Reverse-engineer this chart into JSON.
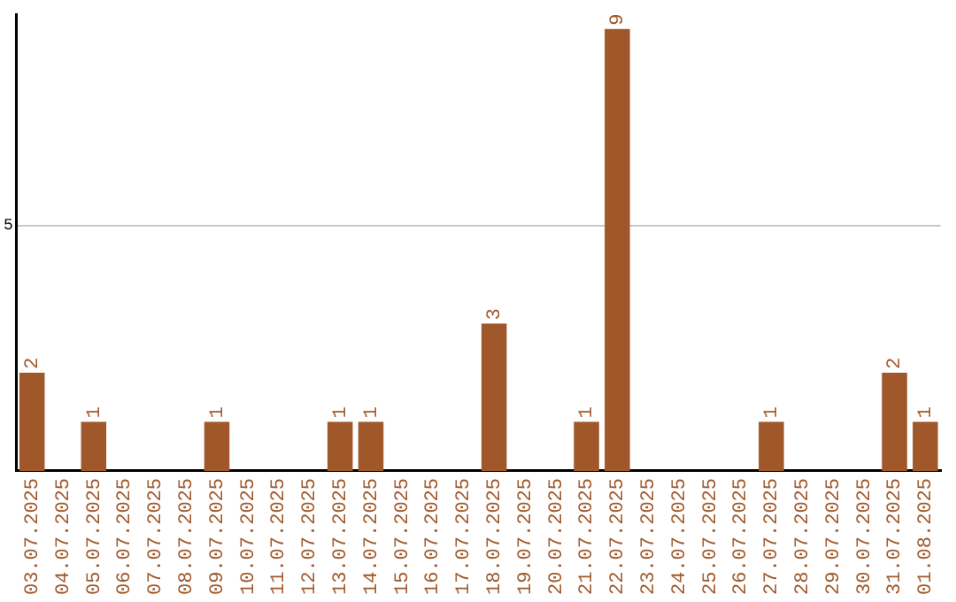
{
  "chart_data": {
    "type": "bar",
    "categories": [
      "03.07.2025",
      "04.07.2025",
      "05.07.2025",
      "06.07.2025",
      "07.07.2025",
      "08.07.2025",
      "09.07.2025",
      "10.07.2025",
      "11.07.2025",
      "12.07.2025",
      "13.07.2025",
      "14.07.2025",
      "15.07.2025",
      "16.07.2025",
      "17.07.2025",
      "18.07.2025",
      "19.07.2025",
      "20.07.2025",
      "21.07.2025",
      "22.07.2025",
      "23.07.2025",
      "24.07.2025",
      "25.07.2025",
      "26.07.2025",
      "27.07.2025",
      "28.07.2025",
      "29.07.2025",
      "30.07.2025",
      "31.07.2025",
      "01.08.2025"
    ],
    "values": [
      2,
      0,
      1,
      0,
      0,
      0,
      1,
      0,
      0,
      0,
      1,
      1,
      0,
      0,
      0,
      3,
      0,
      0,
      1,
      9,
      0,
      0,
      0,
      0,
      1,
      0,
      0,
      0,
      2,
      1
    ],
    "value_labels": [
      "2",
      null,
      "1",
      null,
      null,
      null,
      "1",
      null,
      null,
      null,
      "1",
      "1",
      null,
      null,
      null,
      "3",
      null,
      null,
      "1",
      "9",
      null,
      null,
      null,
      null,
      "1",
      null,
      null,
      null,
      "2",
      "1"
    ],
    "color": "#a0582a",
    "ylim": [
      0,
      9.3
    ],
    "yticks": [
      5
    ],
    "grid": "y"
  }
}
